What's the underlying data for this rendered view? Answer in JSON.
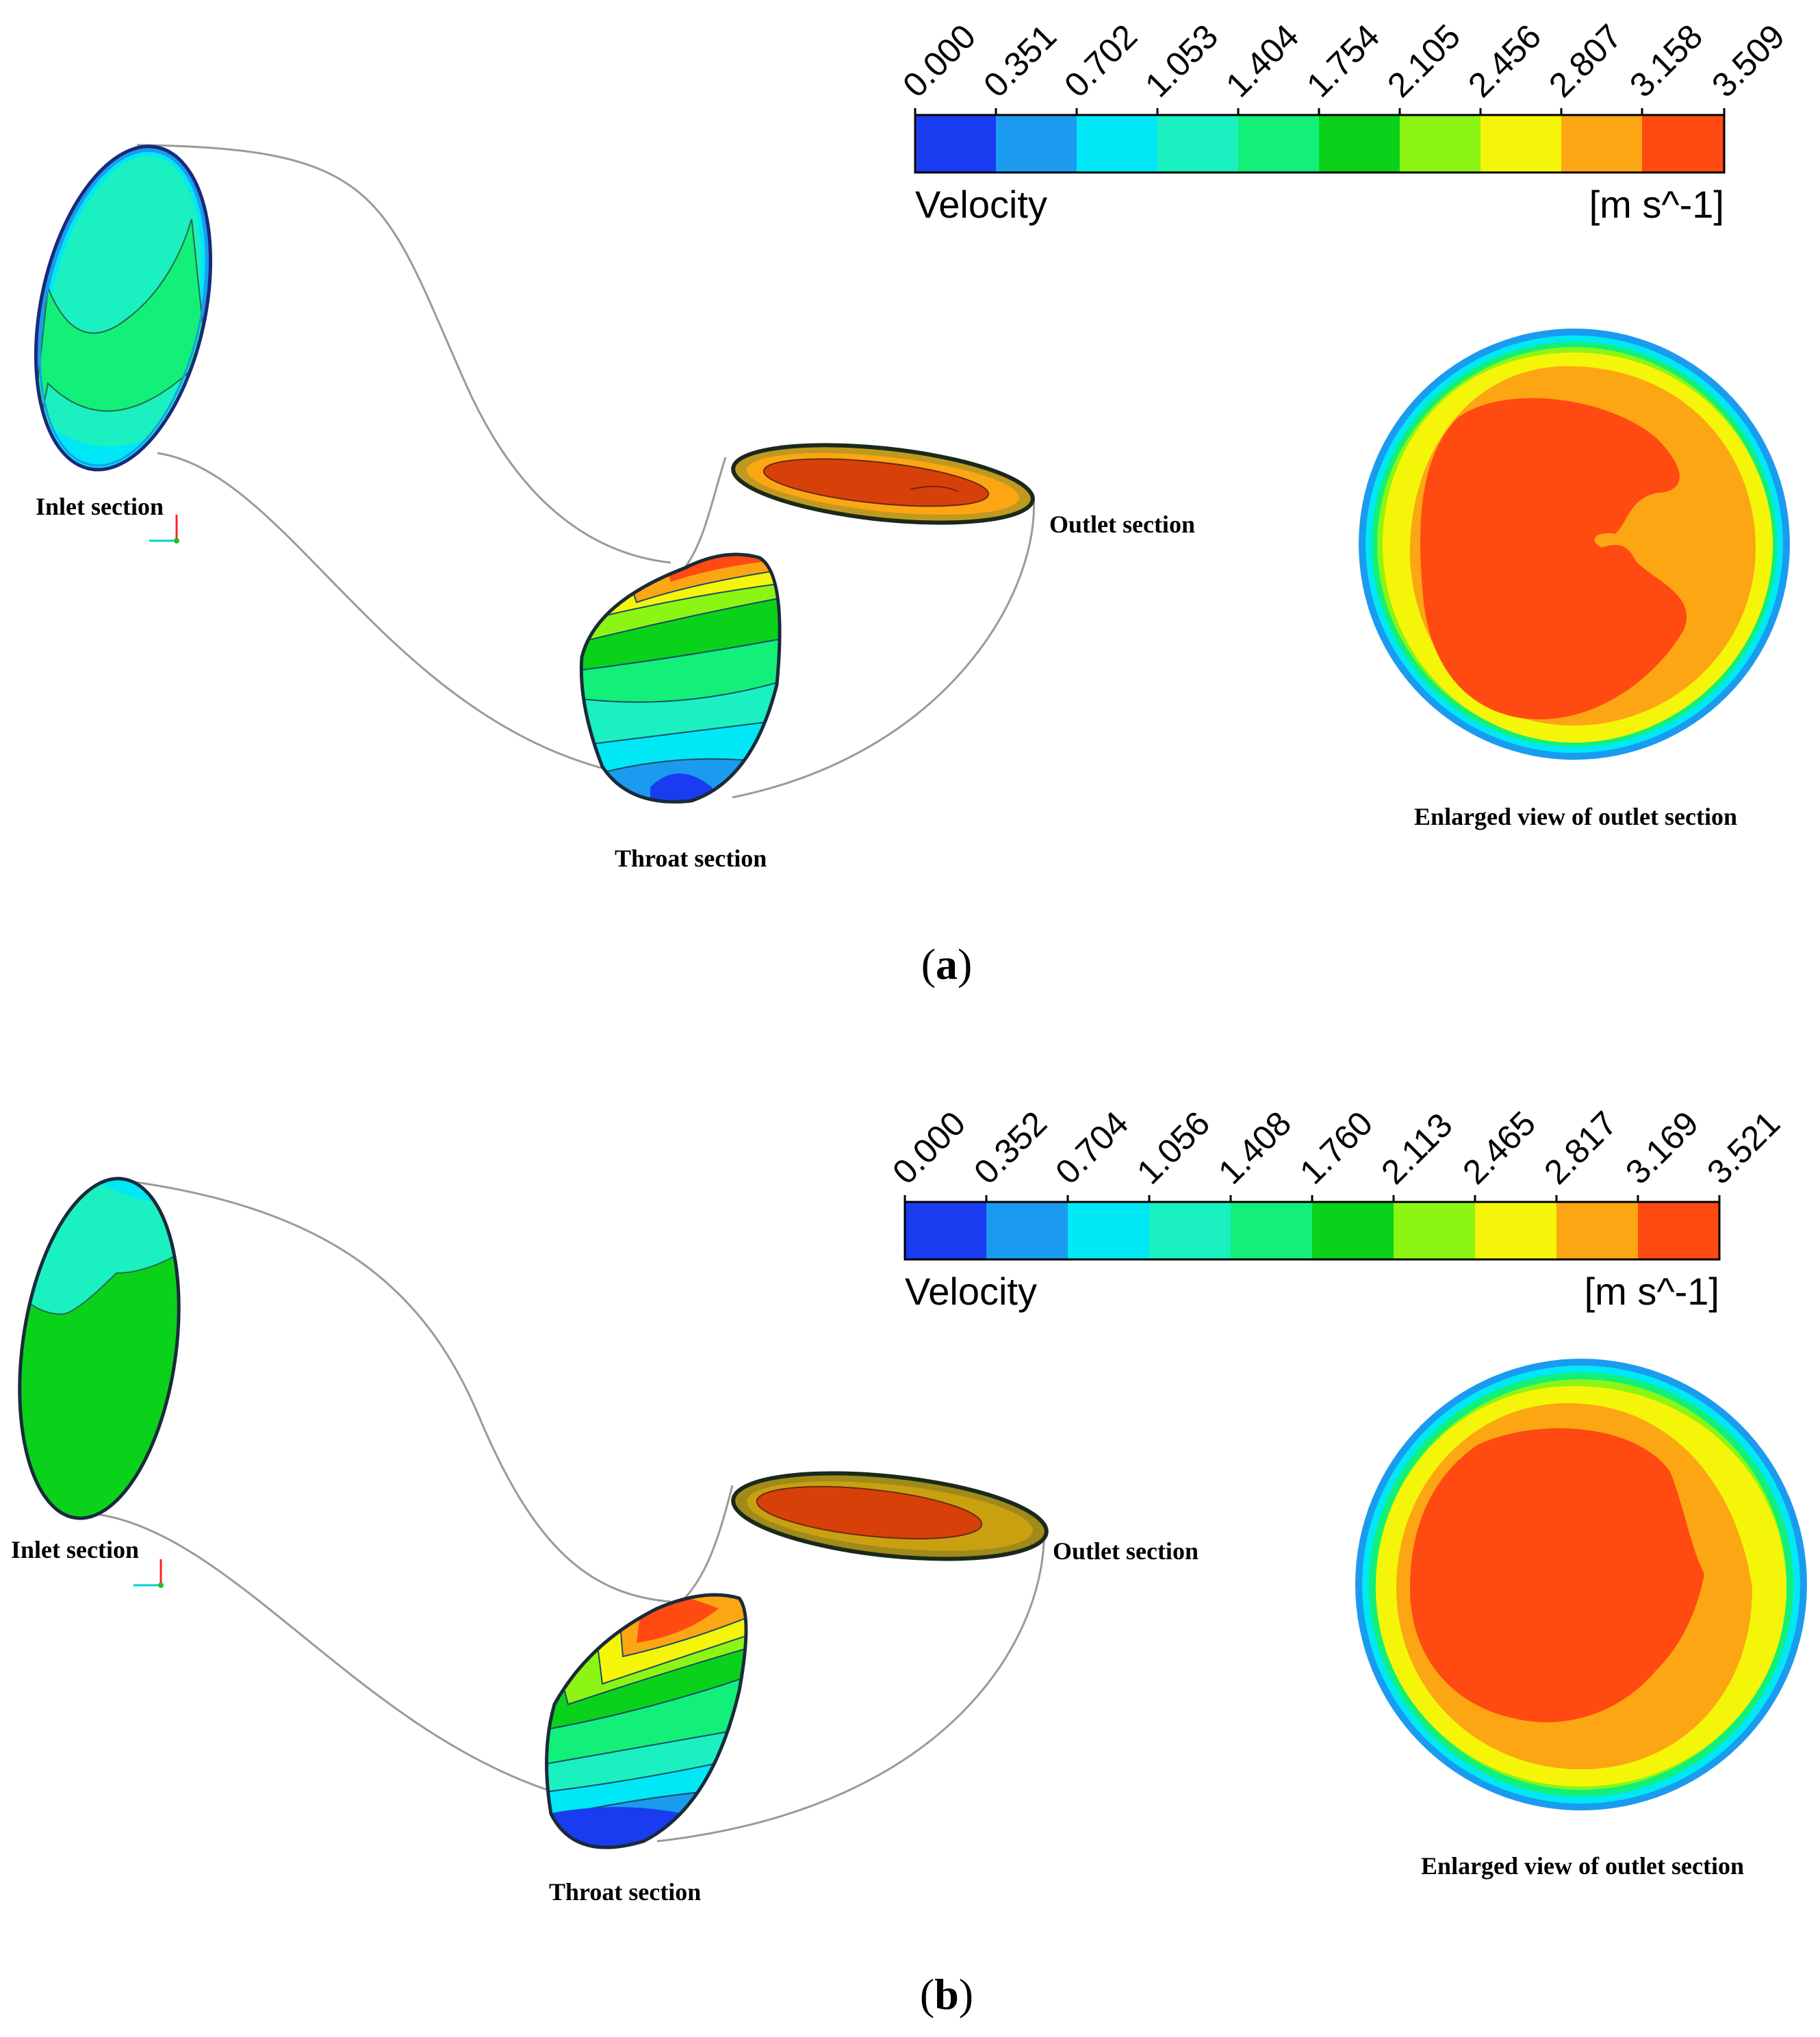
{
  "figure": {
    "panels": [
      {
        "id": "a",
        "caption": "a",
        "colorbar": {
          "ticks": [
            "0.000",
            "0.351",
            "0.702",
            "1.053",
            "1.404",
            "1.754",
            "2.105",
            "2.456",
            "2.807",
            "3.158",
            "3.509"
          ],
          "variable": "Velocity",
          "unit": "[m s^-1]"
        },
        "labels": {
          "inlet": "Inlet section",
          "throat": "Throat section",
          "outlet": "Outlet section",
          "enlarged": "Enlarged view of outlet section"
        }
      },
      {
        "id": "b",
        "caption": "b",
        "colorbar": {
          "ticks": [
            "0.000",
            "0.352",
            "0.704",
            "1.056",
            "1.408",
            "1.760",
            "2.113",
            "2.465",
            "2.817",
            "3.169",
            "3.521"
          ],
          "variable": "Velocity",
          "unit": "[m s^-1]"
        },
        "labels": {
          "inlet": "Inlet section",
          "throat": "Throat section",
          "outlet": "Outlet section",
          "enlarged": "Enlarged view of outlet section"
        }
      }
    ]
  },
  "palette": [
    "#1a3cf0",
    "#1a9bf0",
    "#00e8f5",
    "#1af0c0",
    "#12f07a",
    "#0ad21a",
    "#8cf514",
    "#f5f50a",
    "#fca614",
    "#ff4a12"
  ]
}
